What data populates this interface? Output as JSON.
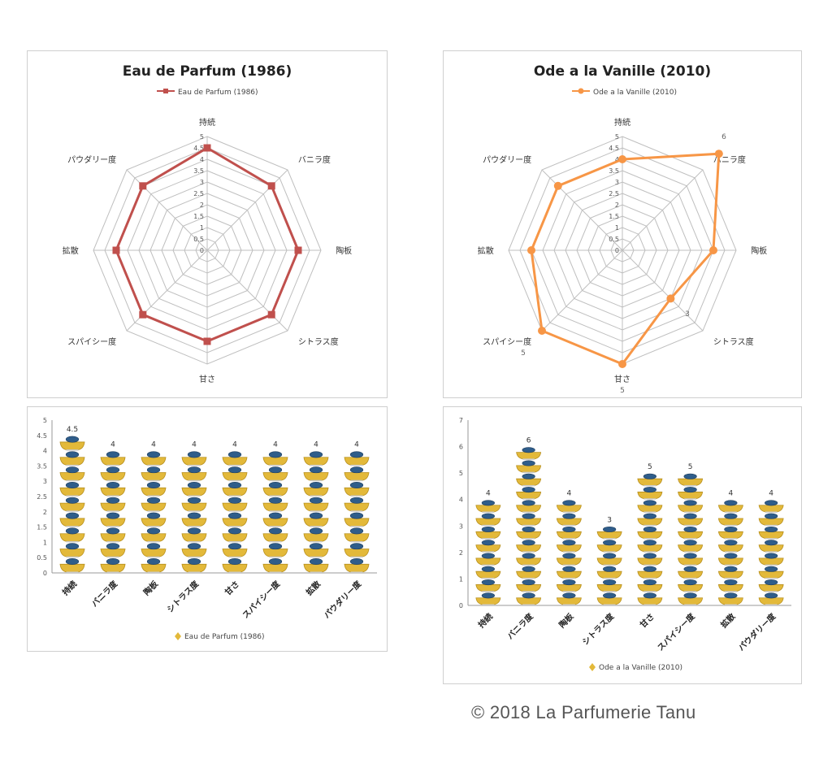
{
  "colors": {
    "left_series": "#c0504d",
    "right_series": "#f79646",
    "grid": "#bfbfbf",
    "bottle_gold": "#e3b93a",
    "bottle_cap": "#2f5d8a"
  },
  "axes_labels": [
    "持続",
    "バニラ度",
    "陶板",
    "シトラス度",
    "甘さ",
    "スパイシー度",
    "拡散",
    "パウダリー度"
  ],
  "footer": {
    "copyright": "© 2018 La Parfumerie Tanu"
  },
  "chart_data": [
    {
      "id": "radar-left",
      "type": "radar",
      "title": "Eau de Parfum (1986)",
      "legend": {
        "label": "Eau de Parfum (1986)",
        "placement": "top"
      },
      "axes": [
        "持続",
        "バニラ度",
        "陶板",
        "シトラス度",
        "甘さ",
        "スパイシー度",
        "拡散",
        "パウダリー度"
      ],
      "ticks": [
        "0",
        "0.5",
        "1",
        "1.5",
        "2",
        "2.5",
        "3",
        "3.5",
        "4",
        "4.5",
        "5"
      ],
      "range": [
        0,
        5
      ],
      "series": [
        {
          "name": "Eau de Parfum (1986)",
          "values": [
            4.5,
            4,
            4,
            4,
            4,
            4,
            4,
            4
          ],
          "color": "#c0504d",
          "marker": "square"
        }
      ]
    },
    {
      "id": "radar-right",
      "type": "radar",
      "title": "Ode a la Vanille (2010)",
      "legend": {
        "label": "Ode a la Vanille (2010)",
        "placement": "top"
      },
      "axes": [
        "持続",
        "バニラ度",
        "陶板",
        "シトラス度",
        "甘さ",
        "スパイシー度",
        "拡散",
        "パウダリー度"
      ],
      "ticks": [
        "0",
        "0.5",
        "1",
        "1.5",
        "2",
        "2.5",
        "3",
        "3.5",
        "4",
        "4.5",
        "5"
      ],
      "range": [
        0,
        5
      ],
      "series": [
        {
          "name": "Ode a la Vanille (2010)",
          "values": [
            4,
            6,
            4,
            3,
            5,
            5,
            4,
            4
          ],
          "color": "#f79646",
          "marker": "circle"
        }
      ],
      "annotations": [
        "6",
        "3",
        "5",
        "5"
      ]
    },
    {
      "id": "bar-left",
      "type": "bar",
      "categories": [
        "持続",
        "バニラ度",
        "陶板",
        "シトラス度",
        "甘さ",
        "スパイシー度",
        "拡散",
        "パウダリー度"
      ],
      "values": [
        4.5,
        4,
        4,
        4,
        4,
        4,
        4,
        4
      ],
      "data_labels": [
        "4.5",
        "4",
        "4",
        "4",
        "4",
        "4",
        "4",
        "4"
      ],
      "yticks": [
        "0",
        "0.5",
        "1",
        "1.5",
        "2",
        "2.5",
        "3",
        "3.5",
        "4",
        "4.5",
        "5"
      ],
      "ylim": [
        0,
        5
      ],
      "unit": 0.5,
      "legend": {
        "label": "Eau de Parfum (1986)",
        "placement": "bottom"
      }
    },
    {
      "id": "bar-right",
      "type": "bar",
      "categories": [
        "持続",
        "バニラ度",
        "陶板",
        "シトラス度",
        "甘さ",
        "スパイシー度",
        "拡散",
        "パウダリー度"
      ],
      "values": [
        4,
        6,
        4,
        3,
        5,
        5,
        4,
        4
      ],
      "data_labels": [
        "4",
        "6",
        "4",
        "3",
        "5",
        "5",
        "4",
        "4"
      ],
      "yticks": [
        "0",
        "1",
        "2",
        "3",
        "4",
        "5",
        "6",
        "7"
      ],
      "ylim": [
        0,
        7
      ],
      "unit": 0.5,
      "legend": {
        "label": "Ode a la Vanille (2010)",
        "placement": "bottom"
      }
    }
  ]
}
